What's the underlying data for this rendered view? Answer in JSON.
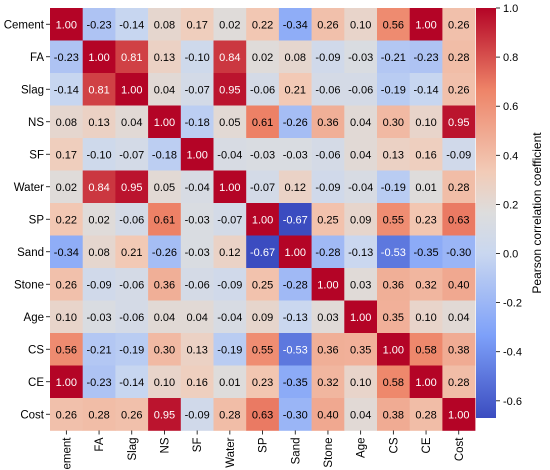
{
  "chart_data": {
    "type": "heatmap",
    "title": "",
    "xlabel": "",
    "ylabel": "",
    "variables": [
      "Cement",
      "FA",
      "Slag",
      "NS",
      "SF",
      "Water",
      "SP",
      "Sand",
      "Stone",
      "Age",
      "CS",
      "CE",
      "Cost"
    ],
    "matrix": [
      [
        1.0,
        -0.23,
        -0.14,
        0.08,
        0.17,
        0.02,
        0.22,
        -0.34,
        0.26,
        0.1,
        0.56,
        1.0,
        0.26
      ],
      [
        -0.23,
        1.0,
        0.81,
        0.13,
        -0.1,
        0.84,
        0.02,
        0.08,
        -0.09,
        -0.03,
        -0.21,
        -0.23,
        0.28
      ],
      [
        -0.14,
        0.81,
        1.0,
        0.04,
        -0.07,
        0.95,
        -0.06,
        0.21,
        -0.06,
        -0.06,
        -0.19,
        -0.14,
        0.26
      ],
      [
        0.08,
        0.13,
        0.04,
        1.0,
        -0.18,
        0.05,
        0.61,
        -0.26,
        0.36,
        0.04,
        0.3,
        0.1,
        0.95
      ],
      [
        0.17,
        -0.1,
        -0.07,
        -0.18,
        1.0,
        -0.04,
        -0.03,
        -0.03,
        -0.06,
        0.04,
        0.13,
        0.16,
        -0.09
      ],
      [
        0.02,
        0.84,
        0.95,
        0.05,
        -0.04,
        1.0,
        -0.07,
        0.12,
        -0.09,
        -0.04,
        -0.19,
        0.01,
        0.28
      ],
      [
        0.22,
        0.02,
        -0.06,
        0.61,
        -0.03,
        -0.07,
        1.0,
        -0.67,
        0.25,
        0.09,
        0.55,
        0.23,
        0.63
      ],
      [
        -0.34,
        0.08,
        0.21,
        -0.26,
        -0.03,
        0.12,
        -0.67,
        1.0,
        -0.28,
        -0.13,
        -0.53,
        -0.35,
        -0.3
      ],
      [
        0.26,
        -0.09,
        -0.06,
        0.36,
        -0.06,
        -0.09,
        0.25,
        -0.28,
        1.0,
        0.03,
        0.36,
        0.32,
        0.4
      ],
      [
        0.1,
        -0.03,
        -0.06,
        0.04,
        0.04,
        -0.04,
        0.09,
        -0.13,
        0.03,
        1.0,
        0.35,
        0.1,
        0.04
      ],
      [
        0.56,
        -0.21,
        -0.19,
        0.3,
        0.13,
        -0.19,
        0.55,
        -0.53,
        0.36,
        0.35,
        1.0,
        0.58,
        0.38
      ],
      [
        1.0,
        -0.23,
        -0.14,
        0.1,
        0.16,
        0.01,
        0.23,
        -0.35,
        0.32,
        0.1,
        0.58,
        1.0,
        0.28
      ],
      [
        0.26,
        0.28,
        0.26,
        0.95,
        -0.09,
        0.28,
        0.63,
        -0.3,
        0.4,
        0.04,
        0.38,
        0.28,
        1.0
      ]
    ],
    "colorbar": {
      "label": "Pearson correlation coefficient",
      "range": [
        -0.67,
        1.0
      ],
      "ticks": [
        "1.0",
        "0.8",
        "0.6",
        "0.4",
        "0.2",
        "0.0",
        "-0.2",
        "-0.4",
        "-0.6"
      ],
      "colormap": [
        "#3b4cc0",
        "#dddddd",
        "#b40426"
      ]
    },
    "grid": false,
    "legend_placement": "right"
  }
}
